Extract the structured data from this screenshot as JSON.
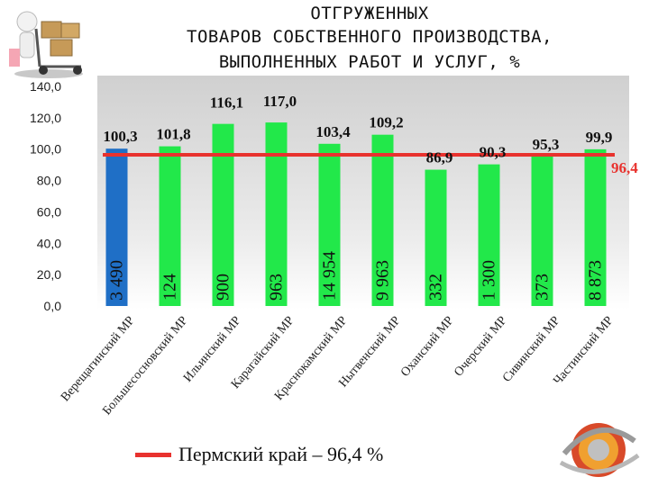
{
  "title_lines": [
    "ОТГРУЖЕННЫХ",
    "ТОВАРОВ СОБСТВЕННОГО ПРОИЗВОДСТВА,",
    "ВЫПОЛНЕННЫХ РАБОТ И УСЛУГ, %"
  ],
  "legend_text": "Пермский край – 96,4 %",
  "colors": {
    "highlight_bar": "#1f6fc6",
    "bar": "#22e84a",
    "reference_line": "#e8322e"
  },
  "chart_data": {
    "type": "bar",
    "categories": [
      "Верещагинский МР",
      "Большесосновский МР",
      "Ильинский МР",
      "Карагайский МР",
      "Краснокамский МР",
      "Нытвенский МР",
      "Оханский МР",
      "Очерский МР",
      "Сивинский МР",
      "Частинский МР"
    ],
    "values": [
      100.3,
      101.8,
      116.1,
      117.0,
      103.4,
      109.2,
      86.9,
      90.3,
      95.3,
      99.9
    ],
    "value_labels": [
      "100,3",
      "101,8",
      "116,1",
      "117,0",
      "103,4",
      "109,2",
      "86,9",
      "90,3",
      "95,3",
      "99,9"
    ],
    "inner_labels": [
      "3 490",
      "124",
      "900",
      "963",
      "14 954",
      "9 963",
      "332",
      "1 300",
      "373",
      "8 873"
    ],
    "reference_line": {
      "value": 96.4,
      "label": "96,4"
    },
    "ylim": [
      0,
      140
    ],
    "yticks": [
      0,
      20,
      40,
      60,
      80,
      100,
      120,
      140
    ],
    "ytick_labels": [
      "0,0",
      "20,0",
      "40,0",
      "60,0",
      "80,0",
      "100,0",
      "120,0",
      "140,0"
    ],
    "grid": false,
    "legend_position": "bottom"
  }
}
